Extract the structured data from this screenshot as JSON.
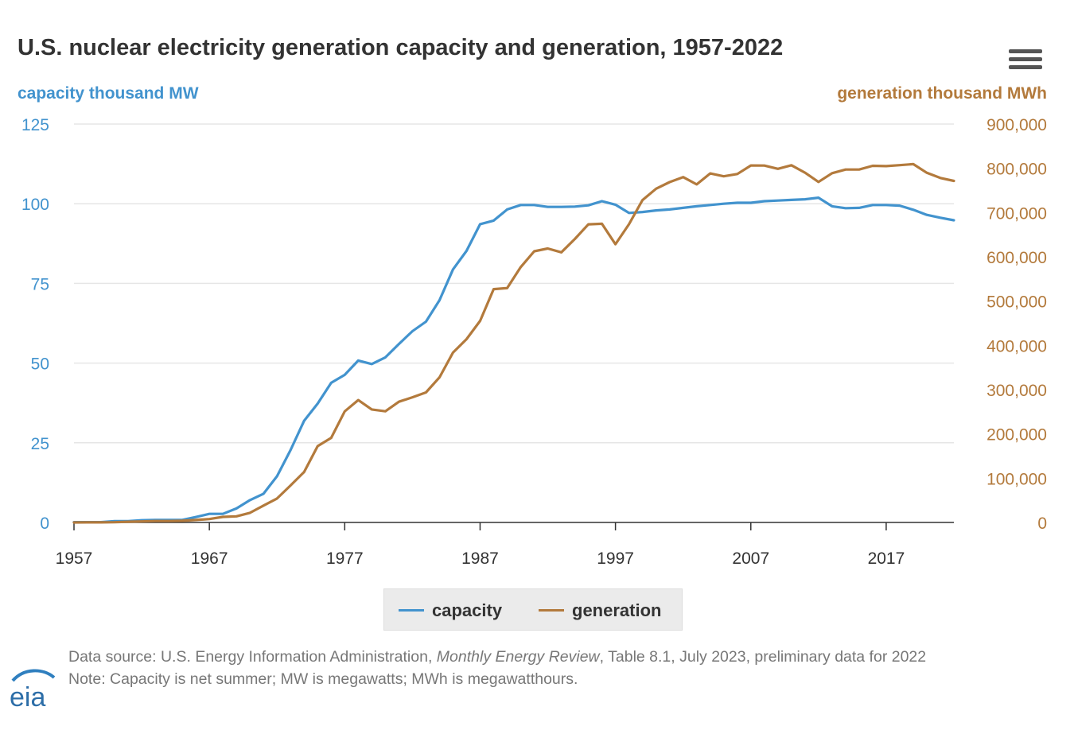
{
  "title": "U.S. nuclear electricity generation capacity and generation, 1957-2022",
  "colors": {
    "capacity": "#4293ce",
    "generation": "#b37a3c",
    "grid": "#e6e6e6",
    "axis": "#333333"
  },
  "legend": {
    "capacity_label": "capacity",
    "generation_label": "generation"
  },
  "footer": {
    "source_prefix": "Data source: U.S. Energy Information Administration, ",
    "source_italic": "Monthly Energy Review",
    "source_suffix": ", Table 8.1, July 2023, preliminary data for 2022",
    "note": "Note: Capacity is net summer; MW is megawatts; MWh is megawatthours."
  },
  "logo": {
    "text": "eia",
    "icon": "eia-logo-icon"
  },
  "menu": {
    "icon": "hamburger-menu-icon"
  },
  "chart_data": {
    "type": "line",
    "title": "U.S. nuclear electricity generation capacity and generation, 1957-2022",
    "xlabel": "",
    "x_ticks": [
      1957,
      1967,
      1977,
      1987,
      1997,
      2007,
      2017
    ],
    "xlim": [
      1957,
      2022
    ],
    "y_left": {
      "label": "capacity thousand MW",
      "ylim": [
        0,
        125
      ],
      "ticks": [
        "0",
        "25",
        "50",
        "75",
        "100",
        "125"
      ]
    },
    "y_right": {
      "label": "generation thousand MWh",
      "ylim": [
        0,
        900000
      ],
      "ticks": [
        "0",
        "100,000",
        "200,000",
        "300,000",
        "400,000",
        "500,000",
        "600,000",
        "700,000",
        "800,000",
        "900,000"
      ]
    },
    "grid": true,
    "legend_position": "bottom",
    "x": [
      1957,
      1958,
      1959,
      1960,
      1961,
      1962,
      1963,
      1964,
      1965,
      1966,
      1967,
      1968,
      1969,
      1970,
      1971,
      1972,
      1973,
      1974,
      1975,
      1976,
      1977,
      1978,
      1979,
      1980,
      1981,
      1982,
      1983,
      1984,
      1985,
      1986,
      1987,
      1988,
      1989,
      1990,
      1991,
      1992,
      1993,
      1994,
      1995,
      1996,
      1997,
      1998,
      1999,
      2000,
      2001,
      2002,
      2003,
      2004,
      2005,
      2006,
      2007,
      2008,
      2009,
      2010,
      2011,
      2012,
      2013,
      2014,
      2015,
      2016,
      2017,
      2018,
      2019,
      2020,
      2021,
      2022
    ],
    "series": [
      {
        "name": "capacity",
        "axis": "left",
        "values": [
          0.1,
          0.1,
          0.1,
          0.4,
          0.4,
          0.7,
          0.8,
          0.8,
          0.8,
          1.7,
          2.7,
          2.7,
          4.4,
          7.0,
          9.0,
          14.5,
          22.7,
          31.9,
          37.3,
          43.8,
          46.3,
          50.8,
          49.7,
          51.8,
          56.0,
          60.0,
          63.0,
          69.7,
          79.4,
          85.2,
          93.6,
          94.7,
          98.2,
          99.6,
          99.6,
          99.0,
          99.0,
          99.1,
          99.5,
          100.8,
          99.7,
          97.1,
          97.4,
          97.9,
          98.2,
          98.7,
          99.2,
          99.6,
          99.99,
          100.3,
          100.3,
          100.8,
          101.0,
          101.2,
          101.4,
          101.9,
          99.2,
          98.6,
          98.7,
          99.6,
          99.6,
          99.4,
          98.1,
          96.5,
          95.6,
          94.8
        ]
      },
      {
        "name": "generation",
        "axis": "right",
        "values": [
          10,
          200,
          200,
          500,
          1700,
          2300,
          3200,
          3300,
          3700,
          5500,
          7700,
          12500,
          13900,
          21800,
          38100,
          54100,
          83500,
          114000,
          172500,
          191100,
          250900,
          276400,
          255200,
          251100,
          272700,
          282800,
          293700,
          327600,
          383700,
          414000,
          455300,
          527000,
          529400,
          576900,
          612600,
          618800,
          610300,
          640400,
          673400,
          674700,
          628600,
          673700,
          728300,
          753900,
          768800,
          780100,
          763700,
          788500,
          782000,
          787200,
          806400,
          806200,
          798900,
          806900,
          790200,
          769300,
          789000,
          797200,
          797200,
          805700,
          804900,
          807100,
          809400,
          789900,
          778200,
          771500
        ]
      }
    ]
  }
}
